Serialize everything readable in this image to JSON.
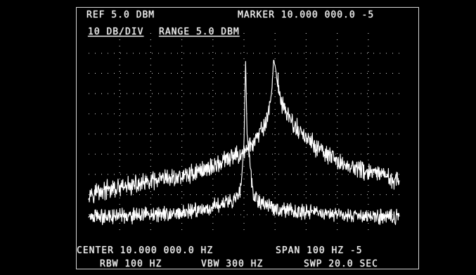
{
  "header": {
    "ref_level": "REF 5.0 DBM",
    "marker": "MARKER 10.000 000.0 -5",
    "scale": "10 DB/DIV",
    "range": "RANGE 5.0 DBM"
  },
  "footer": {
    "center": "CENTER 10.000 000.0 HZ",
    "span": "SPAN 100 HZ -5",
    "rbw": "RBW 100 HZ",
    "vbw": "VBW 300 HZ",
    "sweep": "SWP 20.0 SEC"
  },
  "colors": {
    "background": "#000000",
    "trace": "#ffffff",
    "graticule": "#bfbfbf"
  },
  "chart_data": {
    "type": "line",
    "title": "",
    "xlabel": "",
    "ylabel": "",
    "ylim": [
      -95,
      5
    ],
    "xlim": [
      -50,
      50
    ],
    "grid": true,
    "grid_divisions": {
      "horizontal": 10,
      "vertical": 10
    },
    "series": [
      {
        "values": [
          [
            -50,
            -74
          ],
          [
            -40,
            -72
          ],
          [
            -30,
            -69
          ],
          [
            -20,
            -66
          ],
          [
            -10,
            -61
          ],
          [
            0,
            -54
          ],
          [
            4,
            -48
          ],
          [
            7,
            -40
          ],
          [
            8,
            -33
          ],
          [
            9,
            -23
          ],
          [
            9.5,
            -8
          ],
          [
            10,
            -12
          ],
          [
            12,
            -29
          ],
          [
            16,
            -41
          ],
          [
            22,
            -50
          ],
          [
            30,
            -59
          ],
          [
            40,
            -64
          ],
          [
            50,
            -68
          ]
        ]
      },
      {
        "values": [
          [
            -50,
            -86
          ],
          [
            -40,
            -86
          ],
          [
            -30,
            -85
          ],
          [
            -20,
            -84
          ],
          [
            -10,
            -81
          ],
          [
            -3,
            -77
          ],
          [
            -1,
            -72
          ],
          [
            0,
            -50
          ],
          [
            0.5,
            -8
          ],
          [
            1,
            -45
          ],
          [
            3,
            -77
          ],
          [
            10,
            -82
          ],
          [
            20,
            -84
          ],
          [
            30,
            -85
          ],
          [
            40,
            -86
          ],
          [
            50,
            -86
          ]
        ]
      }
    ]
  }
}
